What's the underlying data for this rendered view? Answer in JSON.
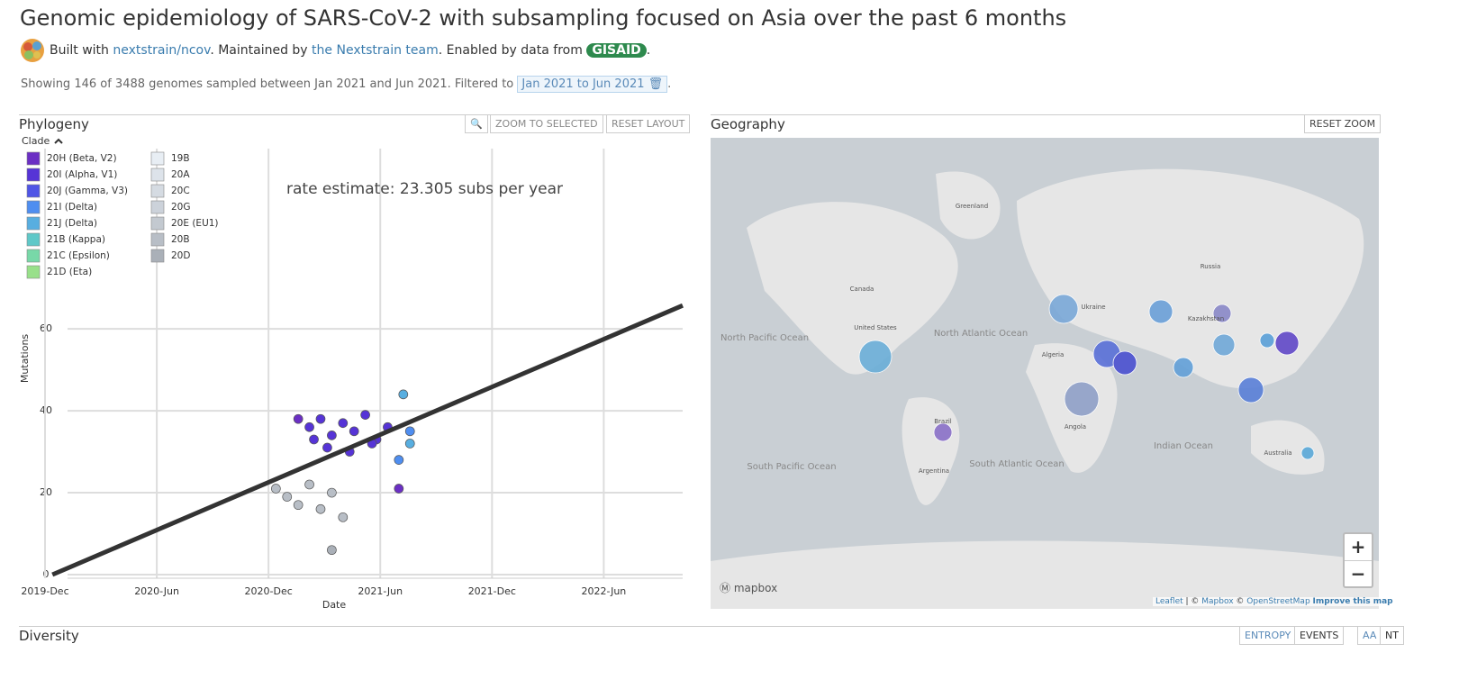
{
  "header": {
    "title": "Genomic epidemiology of SARS-CoV-2 with subsampling focused on Asia over the past 6 months",
    "built_with": "Built with",
    "repo": "nextstrain/ncov",
    "maintained_by": ". Maintained by",
    "team": "the Nextstrain team",
    "enabled_by": ". Enabled by data from",
    "gisaid": "GISAID",
    "end": "."
  },
  "summary": {
    "text": "Showing 146 of 3488 genomes sampled between Jan 2021 and Jun 2021. Filtered to",
    "filter": "Jan 2021 to Jun 2021",
    "end": "."
  },
  "phylogeny": {
    "title": "Phylogeny",
    "zoom_selected": "ZOOM TO SELECTED",
    "reset_layout": "RESET LAYOUT",
    "legend_title": "Clade"
  },
  "chart_data": {
    "type": "scatter",
    "x_label": "Date",
    "y_label": "Mutations",
    "annotation": "rate estimate: 23.305 subs per year",
    "xlim": [
      2019.917,
      2022.77
    ],
    "ylim": [
      0,
      104
    ],
    "xticks": [
      {
        "value": 2019.917,
        "label": "2019-Dec"
      },
      {
        "value": 2020.417,
        "label": "2020-Jun"
      },
      {
        "value": 2020.917,
        "label": "2020-Dec"
      },
      {
        "value": 2021.417,
        "label": "2021-Jun"
      },
      {
        "value": 2021.917,
        "label": "2021-Dec"
      },
      {
        "value": 2022.417,
        "label": "2022-Jun"
      }
    ],
    "yticks": [
      0,
      20,
      40,
      60
    ],
    "grid": true,
    "regression": {
      "color": "#333333",
      "x": [
        2019.95,
        2022.77
      ],
      "values": [
        0,
        65.7
      ]
    },
    "series": [
      {
        "name": "20H (Beta, V2)",
        "color": "#6b2fc4",
        "x": [
          2021.05,
          2021.5
        ],
        "values": [
          38,
          21
        ]
      },
      {
        "name": "20I (Alpha, V1)",
        "color": "#5634d6",
        "x": [
          2021.1,
          2021.15,
          2021.2,
          2021.25,
          2021.3,
          2021.35,
          2021.4,
          2021.45,
          2021.18,
          2021.28,
          2021.38,
          2021.12
        ],
        "values": [
          36,
          38,
          34,
          37,
          35,
          39,
          33,
          36,
          31,
          30,
          32,
          33
        ]
      },
      {
        "name": "20J (Gamma, V3)",
        "color": "#4f55e6",
        "x": [],
        "values": []
      },
      {
        "name": "21I (Delta)",
        "color": "#4f8ef0",
        "x": [
          2021.5,
          2021.55
        ],
        "values": [
          28,
          35
        ]
      },
      {
        "name": "21J (Delta)",
        "color": "#58aee0",
        "x": [
          2021.52,
          2021.55
        ],
        "values": [
          44,
          32
        ]
      },
      {
        "name": "21B (Kappa)",
        "color": "#5fc8c8",
        "x": [],
        "values": []
      },
      {
        "name": "21C (Epsilon)",
        "color": "#78d8a8",
        "x": [],
        "values": []
      },
      {
        "name": "21D (Eta)",
        "color": "#98e08a",
        "x": [],
        "values": []
      },
      {
        "name": "19B",
        "color": "#e8eef4",
        "x": [],
        "values": []
      },
      {
        "name": "20A",
        "color": "#dde3ea",
        "x": [],
        "values": []
      },
      {
        "name": "20C",
        "color": "#d5dbe2",
        "x": [],
        "values": []
      },
      {
        "name": "20G",
        "color": "#ccd2da",
        "x": [],
        "values": []
      },
      {
        "name": "20E (EU1)",
        "color": "#c3c9d0",
        "x": [],
        "values": []
      },
      {
        "name": "20B",
        "color": "#b8bec6",
        "x": [
          2020.95,
          2021.0,
          2021.05,
          2021.1,
          2021.15,
          2021.2,
          2021.25
        ],
        "values": [
          21,
          19,
          17,
          22,
          16,
          20,
          14
        ]
      },
      {
        "name": "20D",
        "color": "#aab0b8",
        "x": [
          2021.2
        ],
        "values": [
          6
        ]
      }
    ]
  },
  "geography": {
    "title": "Geography",
    "reset_zoom": "RESET ZOOM",
    "zoom_in": "+",
    "zoom_out": "−",
    "logo": "mapbox",
    "labels": [
      "Greenland",
      "Canada",
      "Russia",
      "North Pacific Ocean",
      "North Atlantic Ocean",
      "South Pacific Ocean",
      "South Atlantic Ocean",
      "Indian Ocean",
      "United States",
      "Brazil",
      "Australia",
      "Kazakhstan",
      "Ukraine",
      "Algeria",
      "Angola",
      "Argentina"
    ],
    "attribution": {
      "leaflet": "Leaflet",
      "sep": " | © ",
      "mapbox": "Mapbox",
      "c": " © ",
      "osm": "OpenStreetMap",
      "improve": "Improve this map"
    }
  },
  "diversity": {
    "title": "Diversity",
    "entropy": "ENTROPY",
    "events": "EVENTS",
    "aa": "AA",
    "nt": "NT"
  }
}
